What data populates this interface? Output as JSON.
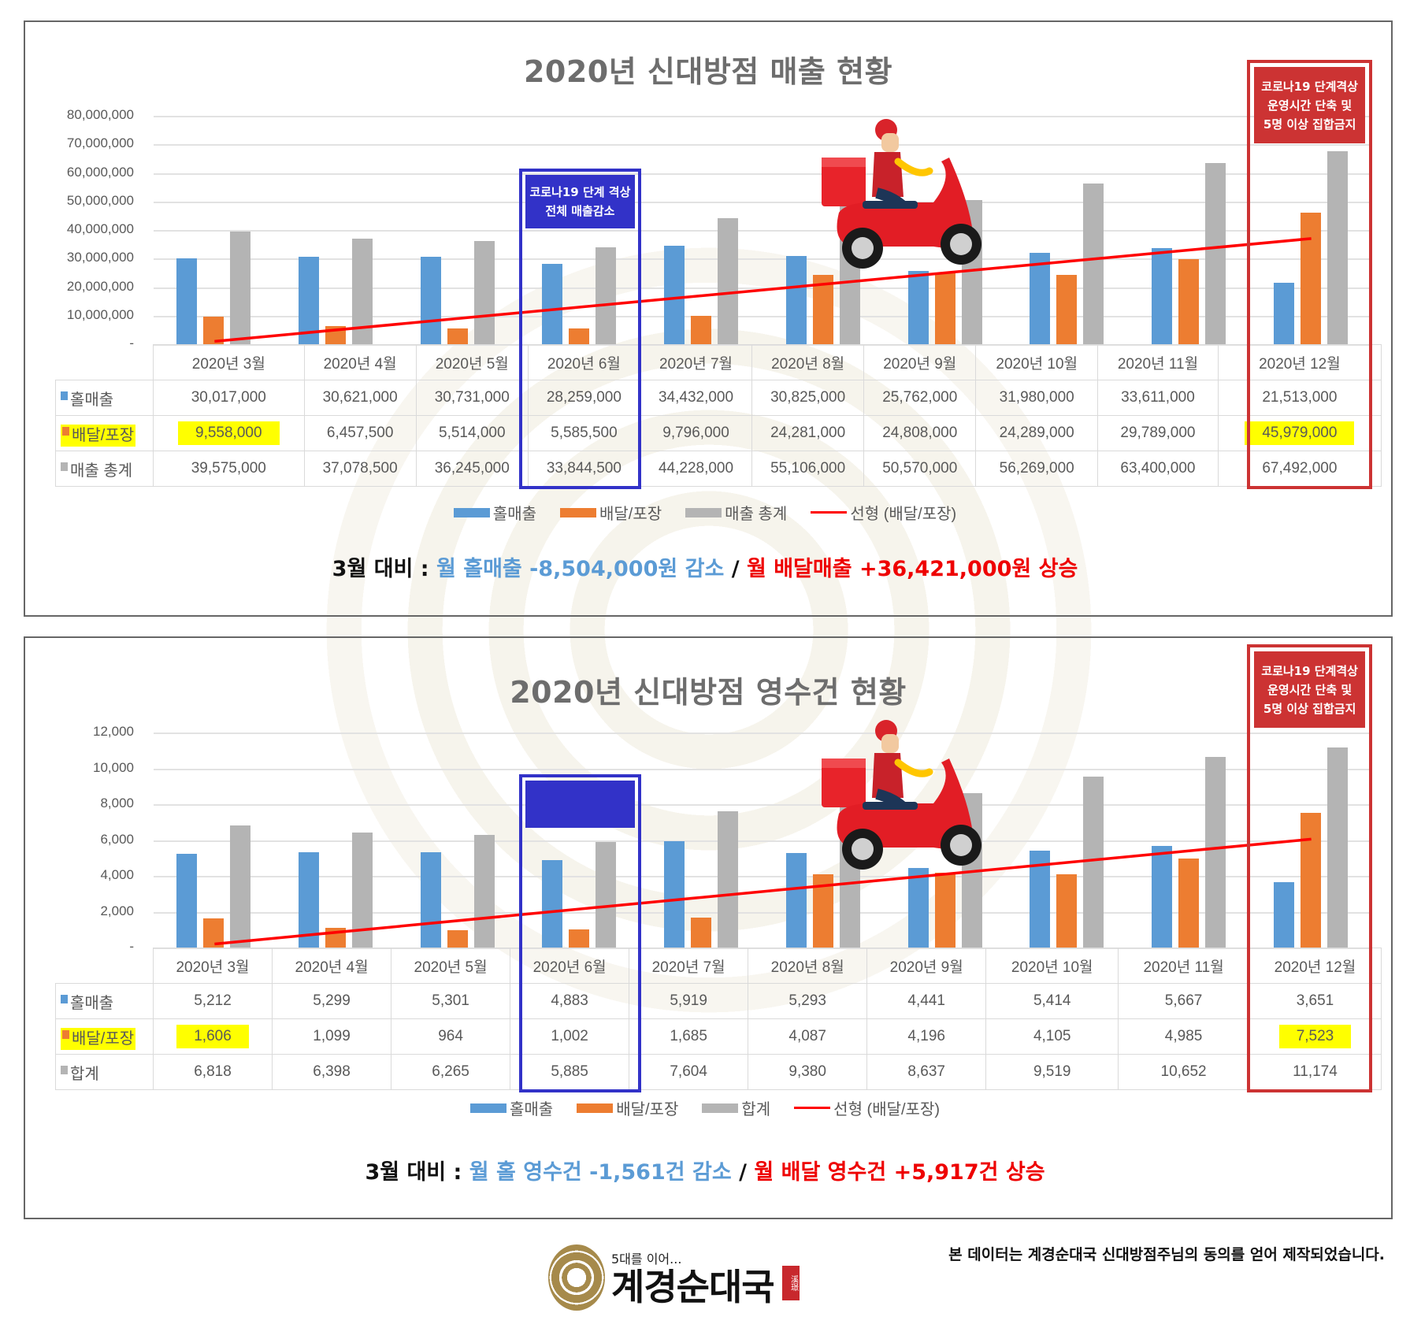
{
  "colors": {
    "hall": "#5b9bd5",
    "delivery": "#ed7d31",
    "total": "#b4b4b4",
    "trend": "#ff0000",
    "highlight": "#ffff00",
    "annotation_blue": "#3232c8",
    "annotation_red": "#cc3333"
  },
  "months": [
    "2020년 3월",
    "2020년 4월",
    "2020년 5월",
    "2020년 6월",
    "2020년 7월",
    "2020년 8월",
    "2020년 9월",
    "2020년 10월",
    "2020년 11월",
    "2020년 12월"
  ],
  "chart1": {
    "title": "2020년 신대방점 매출 현황",
    "yticks": [
      "80,000,000",
      "70,000,000",
      "60,000,000",
      "50,000,000",
      "40,000,000",
      "30,000,000",
      "20,000,000",
      "10,000,000",
      "-"
    ],
    "rows": {
      "hall": {
        "label": "홀매출",
        "values": [
          "30,017,000",
          "30,621,000",
          "30,731,000",
          "28,259,000",
          "34,432,000",
          "30,825,000",
          "25,762,000",
          "31,980,000",
          "33,611,000",
          "21,513,000"
        ]
      },
      "delivery": {
        "label": "배달/포장",
        "values": [
          "9,558,000",
          "6,457,500",
          "5,514,000",
          "5,585,500",
          "9,796,000",
          "24,281,000",
          "24,808,000",
          "24,289,000",
          "29,789,000",
          "45,979,000"
        ]
      },
      "total": {
        "label": "매출 총계",
        "values": [
          "39,575,000",
          "37,078,500",
          "36,245,000",
          "33,844,500",
          "44,228,000",
          "55,106,000",
          "50,570,000",
          "56,269,000",
          "63,400,000",
          "67,492,000"
        ]
      }
    },
    "annotation_blue": {
      "line1": "코로나19 단계 격상",
      "line2": "전체 매출감소"
    },
    "annotation_red": {
      "line1": "코로나19 단계격상",
      "line2": "운영시간 단축 및",
      "line3": "5명 이상 집합금지"
    },
    "legend": {
      "hall": "홀매출",
      "delivery": "배달/포장",
      "total": "매출 총계",
      "trend": "선형 (배달/포장)"
    },
    "summary": {
      "prefix": "3월 대비 : ",
      "hall": "월 홀매출 -8,504,000원 감소",
      "sep": " / ",
      "delivery": "월 배달매출 +36,421,000원 상승"
    }
  },
  "chart2": {
    "title": "2020년 신대방점 영수건 현황",
    "yticks": [
      "12,000",
      "10,000",
      "8,000",
      "6,000",
      "4,000",
      "2,000",
      "-"
    ],
    "rows": {
      "hall": {
        "label": "홀매출",
        "values": [
          "5,212",
          "5,299",
          "5,301",
          "4,883",
          "5,919",
          "5,293",
          "4,441",
          "5,414",
          "5,667",
          "3,651"
        ]
      },
      "delivery": {
        "label": "배달/포장",
        "values": [
          "1,606",
          "1,099",
          "964",
          "1,002",
          "1,685",
          "4,087",
          "4,196",
          "4,105",
          "4,985",
          "7,523"
        ]
      },
      "total": {
        "label": "합계",
        "values": [
          "6,818",
          "6,398",
          "6,265",
          "5,885",
          "7,604",
          "9,380",
          "8,637",
          "9,519",
          "10,652",
          "11,174"
        ]
      }
    },
    "annotation_red": {
      "line1": "코로나19 단계격상",
      "line2": "운영시간 단축 및",
      "line3": "5명 이상 집합금지"
    },
    "legend": {
      "hall": "홀매출",
      "delivery": "배달/포장",
      "total": "합계",
      "trend": "선형 (배달/포장)"
    },
    "summary": {
      "prefix": "3월 대비 : ",
      "hall": "월 홀 영수건 -1,561건 감소",
      "sep": " / ",
      "delivery": "월 배달 영수건 +5,917건 상승"
    }
  },
  "footer": {
    "logo_tagline": "5대를 이어...",
    "logo_name": "계경순대국",
    "logo_seal": "溪璟",
    "disclaimer": "본 데이터는 계경순대국 신대방점주님의 동의를 얻어 제작되었습니다."
  },
  "chart_data": [
    {
      "type": "bar",
      "title": "2020년 신대방점 매출 현황",
      "categories": [
        "2020년 3월",
        "2020년 4월",
        "2020년 5월",
        "2020년 6월",
        "2020년 7월",
        "2020년 8월",
        "2020년 9월",
        "2020년 10월",
        "2020년 11월",
        "2020년 12월"
      ],
      "series": [
        {
          "name": "홀매출",
          "values": [
            30017000,
            30621000,
            30731000,
            28259000,
            34432000,
            30825000,
            25762000,
            31980000,
            33611000,
            21513000
          ]
        },
        {
          "name": "배달/포장",
          "values": [
            9558000,
            6457500,
            5514000,
            5585500,
            9796000,
            24281000,
            24808000,
            24289000,
            29789000,
            45979000
          ]
        },
        {
          "name": "매출 총계",
          "values": [
            39575000,
            37078500,
            36245000,
            33844500,
            44228000,
            55106000,
            50570000,
            56269000,
            63400000,
            67492000
          ]
        },
        {
          "name": "선형 (배달/포장)",
          "type": "line",
          "values": [
            1000000,
            5000000,
            9000000,
            13000000,
            17000000,
            21000000,
            25000000,
            29000000,
            33000000,
            37000000
          ]
        }
      ],
      "xlabel": "",
      "ylabel": "",
      "ylim": [
        0,
        80000000
      ],
      "yticks": [
        0,
        10000000,
        20000000,
        30000000,
        40000000,
        50000000,
        60000000,
        70000000,
        80000000
      ],
      "grid": true,
      "legend_position": "bottom",
      "data_table": true,
      "annotations": [
        "코로나19 단계 격상 전체 매출감소 (2020년 6월)",
        "코로나19 단계격상 운영시간 단축 및 5명 이상 집합금지 (2020년 12월)",
        "3월 대비 : 월 홀매출 -8,504,000원 감소 / 월 배달매출 +36,421,000원 상승"
      ]
    },
    {
      "type": "bar",
      "title": "2020년 신대방점 영수건 현황",
      "categories": [
        "2020년 3월",
        "2020년 4월",
        "2020년 5월",
        "2020년 6월",
        "2020년 7월",
        "2020년 8월",
        "2020년 9월",
        "2020년 10월",
        "2020년 11월",
        "2020년 12월"
      ],
      "series": [
        {
          "name": "홀매출",
          "values": [
            5212,
            5299,
            5301,
            4883,
            5919,
            5293,
            4441,
            5414,
            5667,
            3651
          ]
        },
        {
          "name": "배달/포장",
          "values": [
            1606,
            1099,
            964,
            1002,
            1685,
            4087,
            4196,
            4105,
            4985,
            7523
          ]
        },
        {
          "name": "합계",
          "values": [
            6818,
            6398,
            6265,
            5885,
            7604,
            9380,
            8637,
            9519,
            10652,
            11174
          ]
        },
        {
          "name": "선형 (배달/포장)",
          "type": "line",
          "values": [
            200,
            850,
            1500,
            2150,
            2800,
            3450,
            4100,
            4750,
            5400,
            6050
          ]
        }
      ],
      "xlabel": "",
      "ylabel": "",
      "ylim": [
        0,
        12000
      ],
      "yticks": [
        0,
        2000,
        4000,
        6000,
        8000,
        10000,
        12000
      ],
      "grid": true,
      "legend_position": "bottom",
      "data_table": true,
      "annotations": [
        "코로나19 단계격상 운영시간 단축 및 5명 이상 집합금지 (2020년 12월)",
        "3월 대비 : 월 홀 영수건 -1,561건 감소 / 월 배달 영수건 +5,917건 상승"
      ]
    }
  ]
}
